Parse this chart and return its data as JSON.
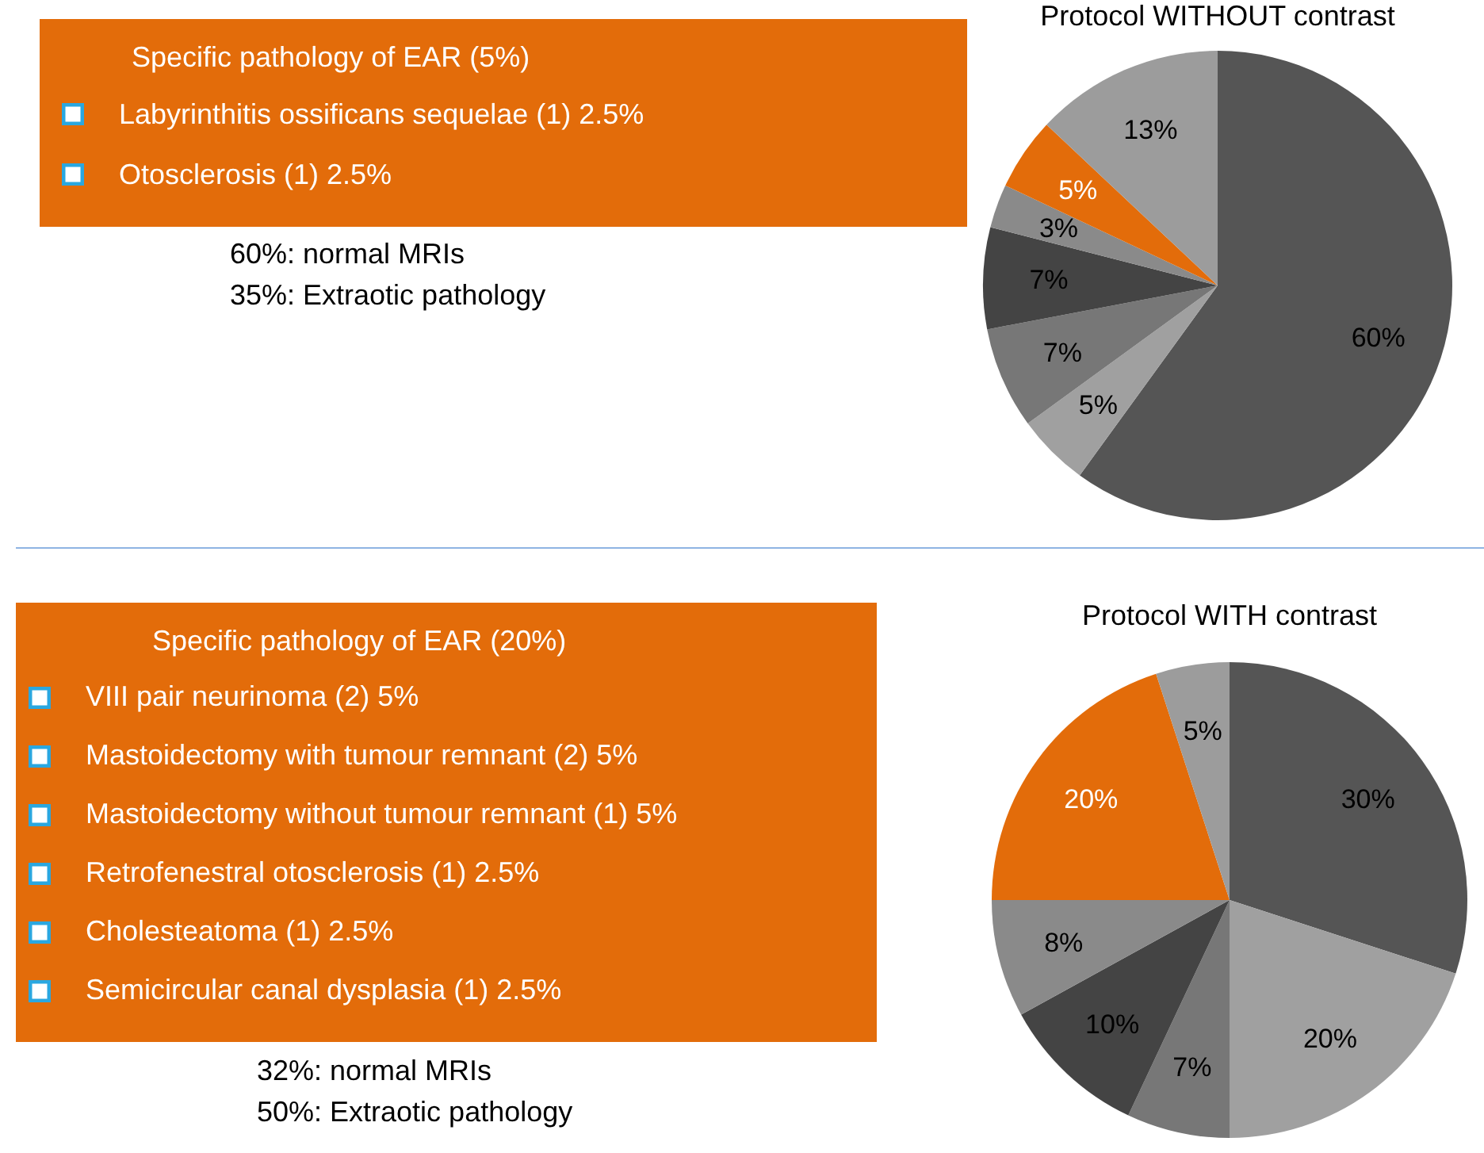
{
  "chart_data": [
    {
      "type": "other",
      "title": "Specific pathology of EAR (5%)",
      "color": "#e36c0a",
      "annotations": [
        "Labyrinthitis ossificans sequelae (1) 2.5%",
        "Otosclerosis (1) 2.5%"
      ]
    },
    {
      "type": "pie",
      "title": "Protocol WITHOUT contrast",
      "categories": [
        null,
        null,
        null,
        null,
        null,
        null,
        null
      ],
      "values": [
        60,
        5,
        7,
        7,
        3,
        5,
        13
      ],
      "colors": [
        "#555555",
        "#a0a0a0",
        "#777777",
        "#444444",
        "#8a8a8a",
        "#e36c0a",
        "#9c9c9c"
      ],
      "value_labels": [
        "60%",
        "5%",
        "7%",
        "7%",
        "3%",
        "5%",
        "13%"
      ],
      "annotations": [
        "60%: normal MRIs",
        "35%: Extraotic pathology"
      ]
    },
    {
      "type": "other",
      "title": "Specific pathology of EAR (20%)",
      "color": "#e36c0a",
      "annotations": [
        "VIII pair neurinoma (2) 5%",
        "Mastoidectomy with tumour remnant (2) 5%",
        "Mastoidectomy without tumour remnant (1) 5%",
        "Retrofenestral otosclerosis (1) 2.5%",
        "Cholesteatoma (1) 2.5%",
        "Semicircular canal dysplasia (1) 2.5%"
      ]
    },
    {
      "type": "pie",
      "title": "Protocol WITH contrast",
      "categories": [
        null,
        null,
        null,
        null,
        null,
        null,
        null
      ],
      "values": [
        30,
        20,
        7,
        10,
        8,
        20,
        5
      ],
      "colors": [
        "#555555",
        "#a0a0a0",
        "#777777",
        "#444444",
        "#8a8a8a",
        "#e36c0a",
        "#9c9c9c"
      ],
      "value_labels": [
        "30%",
        "20%",
        "7%",
        "10%",
        "8%",
        "20%",
        "5%"
      ],
      "annotations": [
        "32%: normal MRIs",
        "50%: Extraotic pathology"
      ]
    }
  ]
}
